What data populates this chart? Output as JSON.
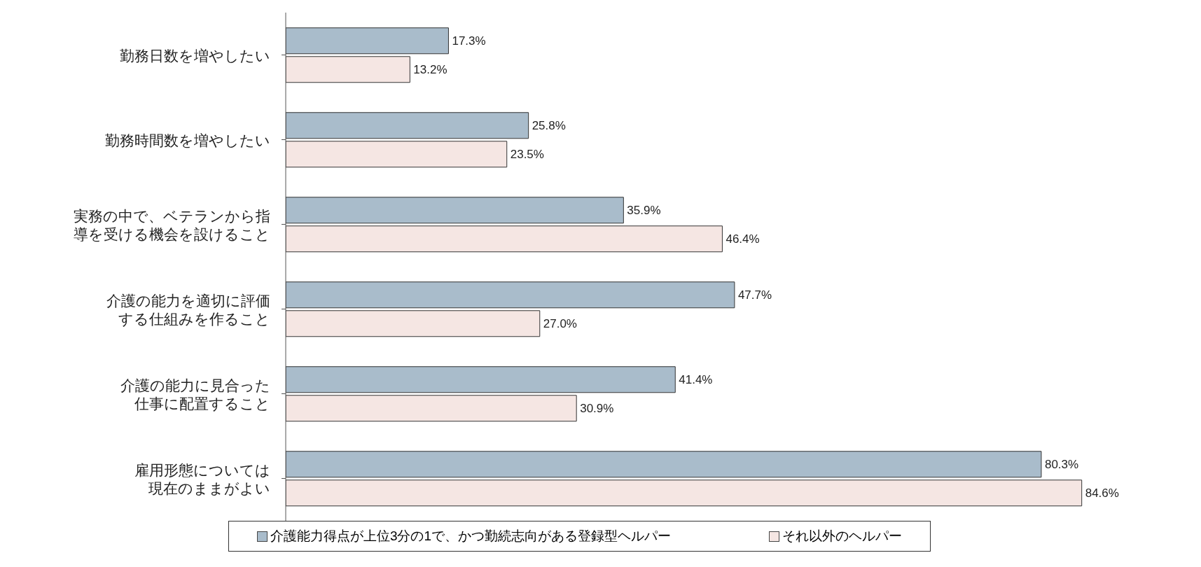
{
  "chart_data": {
    "type": "bar",
    "orientation": "horizontal",
    "categories": [
      "勤務日数を増やしたい",
      "勤務時間数を増やしたい",
      "実務の中で、ベテランから指導を受ける機会を設けること",
      "介護の能力を適切に評価する仕組みを作ること",
      "介護の能力に見合った仕事に配置すること",
      "雇用形態については現在のままがよい"
    ],
    "series": [
      {
        "name": "介護能力得点が上位3分の1で、かつ勤続志向がある登録型ヘルパー",
        "color": "#a9bccb",
        "values": [
          17.3,
          25.8,
          35.9,
          47.7,
          41.4,
          80.3
        ],
        "value_labels": [
          "17.3%",
          "25.8%",
          "35.9%",
          "47.7%",
          "41.4%",
          "80.3%"
        ]
      },
      {
        "name": "それ以外のヘルパー",
        "color": "#f5e6e3",
        "values": [
          13.2,
          23.5,
          46.4,
          27.0,
          30.9,
          84.6
        ],
        "value_labels": [
          "13.2%",
          "23.5%",
          "46.4%",
          "27.0%",
          "30.9%",
          "84.6%"
        ]
      }
    ],
    "legend": "bottom"
  }
}
